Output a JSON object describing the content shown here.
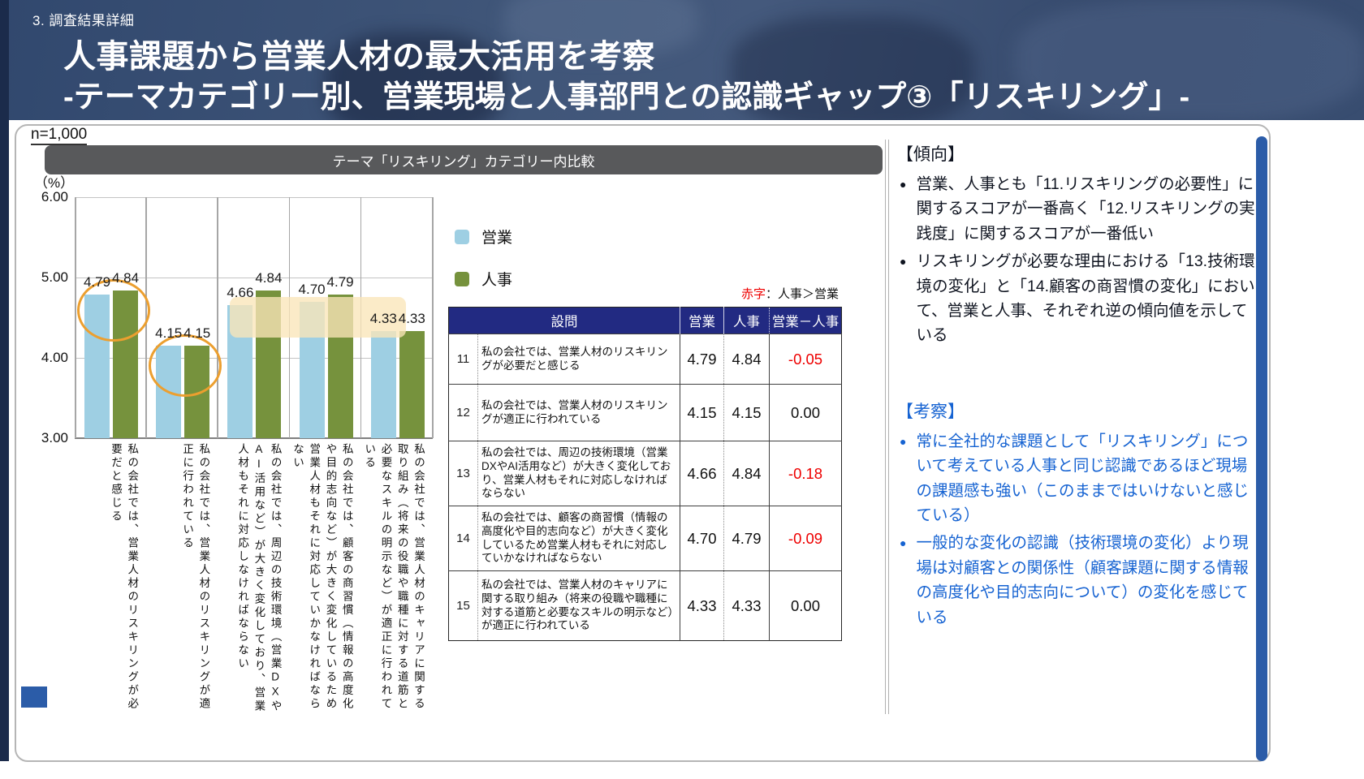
{
  "header": {
    "eyebrow": "3. 調査結果詳細",
    "title_line1": "人事課題から営業人材の最大活用を考察",
    "title_line2": "-テーマカテゴリー別、営業現場と人事部門との認識ギャップ③「リスキリング」-"
  },
  "main": {
    "sample_size": "n=1,000",
    "chart_title": "テーマ「リスキリング」カテゴリー内比較",
    "unit_label": "（%）",
    "note_red": "赤字",
    "note_rest": "：人事＞営業"
  },
  "legend": [
    {
      "label": "営業",
      "color": "#9ecfe3"
    },
    {
      "label": "人事",
      "color": "#76923d"
    }
  ],
  "chart_data": {
    "type": "bar",
    "title": "テーマ「リスキリング」カテゴリー内比較",
    "ylabel": "（%）",
    "ylim": [
      3.0,
      6.0
    ],
    "yticks": [
      "6.00",
      "5.00",
      "4.00",
      "3.00"
    ],
    "grid": true,
    "legend_position": "right",
    "categories": [
      "私の会社では、営業人材のリスキリングが必要だと感じる",
      "私の会社では、営業人材のリスキリングが適正に行われている",
      "私の会社では、周辺の技術環境（営業DXやAI活用など）が大きく変化しており、営業人材もそれに対応しなければならない",
      "私の会社では、顧客の商習慣（情報の高度化や目的志向など）が大きく変化しているため営業人材もそれに対応していかなければならない",
      "私の会社では、営業人材のキャリアに関する取り組み（将来の役職や職種に対する道筋と必要なスキルの明示など）が適正に行われている"
    ],
    "series": [
      {
        "name": "営業",
        "color": "#9ecfe3",
        "values": [
          4.79,
          4.15,
          4.66,
          4.7,
          4.33
        ]
      },
      {
        "name": "人事",
        "color": "#76923d",
        "values": [
          4.84,
          4.15,
          4.84,
          4.79,
          4.33
        ]
      }
    ],
    "annotations": {
      "ellipse_color": "#ec9f2f",
      "ellipses_on_pairs": [
        1,
        2
      ],
      "highlight_color": "#fae6b8",
      "highlight_on_pairs": [
        3,
        4
      ]
    }
  },
  "table": {
    "headers": [
      "設問",
      "営業",
      "人事",
      "営業－人事"
    ],
    "rows": [
      {
        "no": "11",
        "q": "私の会社では、営業人材のリスキリングが必要だと感じる",
        "sales": "4.79",
        "hr": "4.84",
        "diff": "-0.05"
      },
      {
        "no": "12",
        "q": "私の会社では、営業人材のリスキリングが適正に行われている",
        "sales": "4.15",
        "hr": "4.15",
        "diff": "0.00"
      },
      {
        "no": "13",
        "q": "私の会社では、周辺の技術環境（営業DXやAI活用など）が大きく変化しており、営業人材もそれに対応しなければならない",
        "sales": "4.66",
        "hr": "4.84",
        "diff": "-0.18"
      },
      {
        "no": "14",
        "q": "私の会社では、顧客の商習慣（情報の高度化や目的志向など）が大きく変化しているため営業人材もそれに対応していかなければならない",
        "sales": "4.70",
        "hr": "4.79",
        "diff": "-0.09"
      },
      {
        "no": "15",
        "q": "私の会社では、営業人材のキャリアに関する取り組み（将来の役職や職種に対する道筋と必要なスキルの明示など）が適正に行われている",
        "sales": "4.33",
        "hr": "4.33",
        "diff": "0.00"
      }
    ]
  },
  "insights": {
    "bullet_glyph": "●",
    "trend_title": "【傾向】",
    "trend_items": [
      "営業、人事とも「11.リスキリングの必要性」に関するスコアが一番高く「12.リスキリングの実践度」に関するスコアが一番低い",
      "リスキリングが必要な理由における「13.技術環境の変化」と「14.顧客の商習慣の変化」において、営業と人事、それぞれ逆の傾向値を示している"
    ],
    "consider_title": "【考察】",
    "consider_items": [
      "常に全社的な課題として「リスキリング」について考えている人事と同じ認識であるほど現場の課題感も強い（このままではいけないと感じている）",
      "一般的な変化の認識（技術環境の変化）より現場は対顧客との関係性（顧客課題に関する情報の高度化や目的志向について）の変化を感じている"
    ]
  }
}
